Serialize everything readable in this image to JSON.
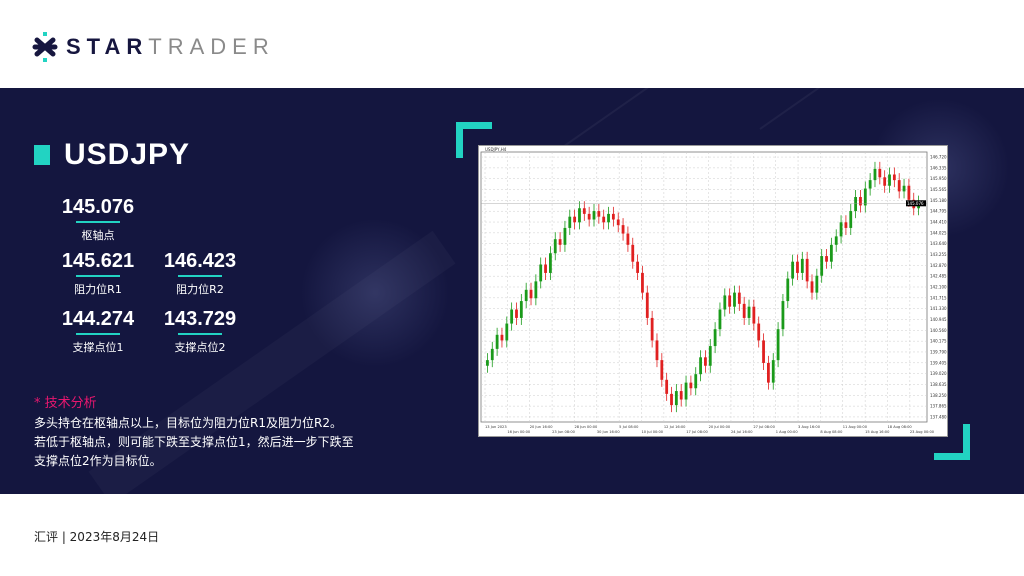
{
  "brand": {
    "bold": "STAR",
    "light": "TRADER"
  },
  "symbol": "USDJPY",
  "levels": {
    "pivot": {
      "value": "145.076",
      "label": "枢轴点"
    },
    "r1": {
      "value": "145.621",
      "label": "阻力位R1"
    },
    "r2": {
      "value": "146.423",
      "label": "阻力位R2"
    },
    "s1": {
      "value": "144.274",
      "label": "支撑点位1"
    },
    "s2": {
      "value": "143.729",
      "label": "支撑点位2"
    }
  },
  "analysis": {
    "heading": "* 技术分析",
    "lines": [
      "多头持仓在枢轴点以上，目标位为阻力位R1及阻力位R2。",
      "若低于枢轴点，则可能下跌至支撑点位1，然后进一步下跌至",
      "支撑点位2作为目标位。"
    ]
  },
  "footer": "汇评 | 2023年8月24日",
  "colors": {
    "navy": "#14163f",
    "teal": "#22d3c2",
    "pink": "#e8176f",
    "up": "#1a9a1a",
    "down": "#e02020"
  },
  "chart_data": {
    "type": "candlestick",
    "header": "USDJPY,H4",
    "current_price": "145.076",
    "ylim": [
      137.3,
      146.9
    ],
    "y_ticks": [
      "146.720",
      "146.335",
      "145.950",
      "145.565",
      "145.180",
      "144.795",
      "144.410",
      "144.025",
      "143.640",
      "143.255",
      "142.870",
      "142.485",
      "142.100",
      "141.715",
      "141.330",
      "140.945",
      "140.560",
      "140.175",
      "139.790",
      "139.405",
      "139.020",
      "138.635",
      "138.250",
      "137.865",
      "137.480"
    ],
    "x_ticks": [
      "13 Jun 2023",
      "16 Jun 00:00",
      "20 Jun 16:00",
      "23 Jun 08:00",
      "28 Jun 00:00",
      "30 Jun 16:00",
      "5 Jul 08:00",
      "10 Jul 00:00",
      "12 Jul 16:00",
      "17 Jul 08:00",
      "20 Jul 00:00",
      "24 Jul 16:00",
      "27 Jul 08:00",
      "1 Aug 00:00",
      "3 Aug 16:00",
      "8 Aug 08:00",
      "11 Aug 00:00",
      "15 Aug 16:00",
      "18 Aug 08:00",
      "23 Aug 00:00"
    ],
    "closes": [
      139.5,
      139.9,
      140.4,
      140.2,
      140.8,
      141.3,
      141.0,
      141.6,
      142.0,
      141.7,
      142.3,
      142.9,
      142.6,
      143.3,
      143.8,
      143.6,
      144.2,
      144.6,
      144.4,
      144.9,
      144.7,
      144.5,
      144.8,
      144.6,
      144.4,
      144.7,
      144.5,
      144.3,
      144.0,
      143.6,
      143.0,
      142.6,
      141.9,
      141.0,
      140.2,
      139.5,
      138.8,
      138.3,
      137.9,
      138.4,
      138.1,
      138.7,
      138.5,
      139.0,
      139.6,
      139.3,
      140.0,
      140.6,
      141.3,
      141.8,
      141.4,
      141.9,
      141.5,
      141.0,
      141.4,
      140.8,
      140.2,
      139.4,
      138.7,
      139.5,
      140.6,
      141.6,
      142.4,
      143.0,
      142.6,
      143.1,
      142.3,
      141.9,
      142.5,
      143.2,
      143.0,
      143.6,
      143.9,
      144.4,
      144.2,
      144.8,
      145.3,
      145.0,
      145.6,
      145.9,
      146.3,
      146.0,
      145.7,
      146.1,
      145.9,
      145.5,
      145.7,
      145.2,
      144.9,
      145.1
    ]
  }
}
